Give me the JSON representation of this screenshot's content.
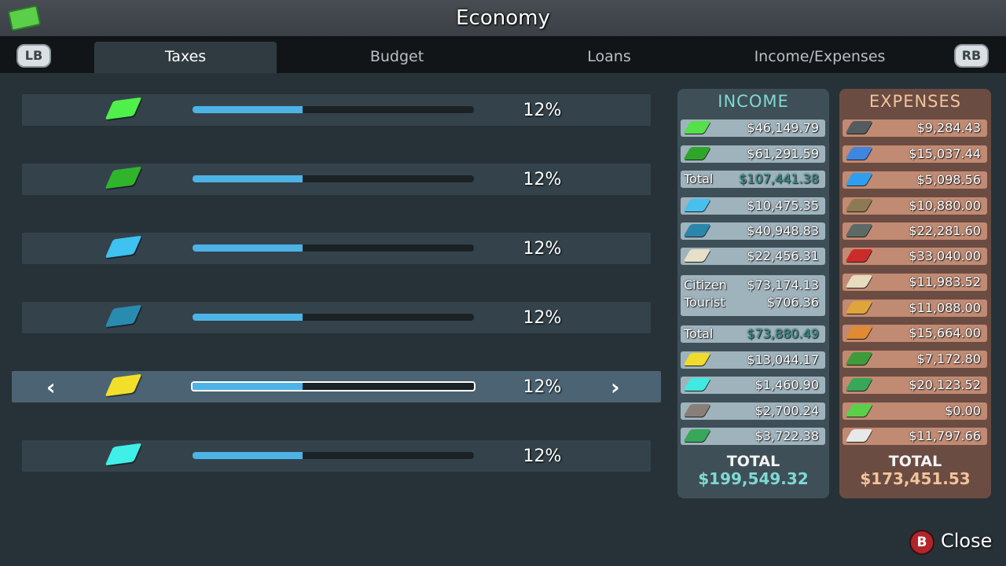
{
  "header": {
    "title": "Economy"
  },
  "tabs": {
    "left_button": "LB",
    "right_button": "RB",
    "items": [
      "Taxes",
      "Budget",
      "Loans",
      "Income/Expenses"
    ],
    "active": 0
  },
  "tax_rows": [
    {
      "rate": "12%"
    },
    {
      "rate": "12%"
    },
    {
      "rate": "12%"
    },
    {
      "rate": "12%"
    },
    {
      "rate": "12%"
    },
    {
      "rate": "12%"
    }
  ],
  "selected_tax_row": 4,
  "income": {
    "title": "INCOME",
    "rows": [
      {
        "value": "$46,149.79"
      },
      {
        "value": "$61,291.59"
      },
      {
        "label": "Total",
        "value": "$107,441.38",
        "total": true
      },
      {
        "value": "$10,475.35"
      },
      {
        "value": "$40,948.83"
      },
      {
        "value": "$22,456.31"
      },
      {
        "lines": [
          {
            "label": "Citizen",
            "value": "$73,174.13"
          },
          {
            "label": "Tourist",
            "value": "$706.36"
          }
        ]
      },
      {
        "label": "Total",
        "value": "$73,880.49",
        "total": true
      },
      {
        "value": "$13,044.17"
      },
      {
        "value": "$1,460.90"
      },
      {
        "value": "$2,700.24"
      },
      {
        "value": "$3,722.38"
      }
    ],
    "total_label": "TOTAL",
    "total": "$199,549.32"
  },
  "expenses": {
    "title": "EXPENSES",
    "rows": [
      {
        "value": "$9,284.43"
      },
      {
        "value": "$15,037.44"
      },
      {
        "value": "$5,098.56"
      },
      {
        "value": "$10,880.00"
      },
      {
        "value": "$22,281.60"
      },
      {
        "value": "$33,040.00"
      },
      {
        "value": "$11,983.52"
      },
      {
        "value": "$11,088.00"
      },
      {
        "value": "$15,664.00"
      },
      {
        "value": "$7,172.80"
      },
      {
        "value": "$20,123.52"
      },
      {
        "value": "$0.00"
      },
      {
        "value": "$11,797.66"
      }
    ],
    "total_label": "TOTAL",
    "total": "$173,451.53"
  },
  "footer": {
    "button": "B",
    "label": "Close"
  }
}
